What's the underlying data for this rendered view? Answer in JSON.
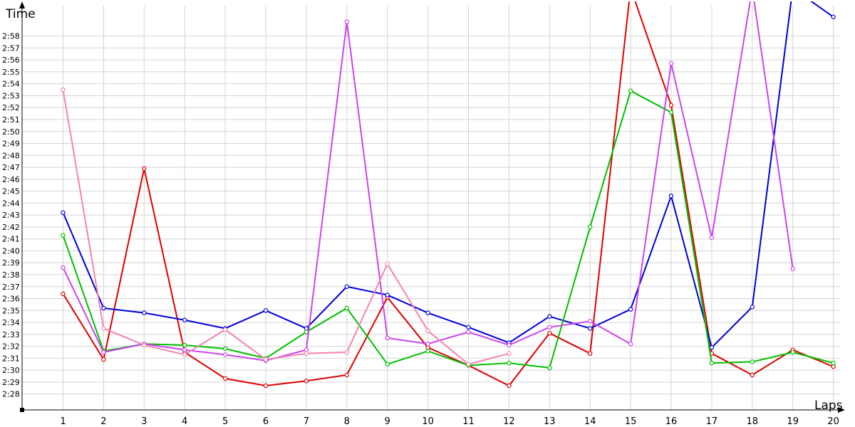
{
  "chart_data": {
    "type": "line",
    "ylabel": "Time",
    "xlabel": "Laps",
    "x": [
      1,
      2,
      3,
      4,
      5,
      6,
      7,
      8,
      9,
      10,
      11,
      12,
      13,
      14,
      15,
      16,
      17,
      18,
      19,
      20
    ],
    "y_unit": "minutes:seconds",
    "ylim": [
      "2:26.5",
      "3:00"
    ],
    "ytick_labels": [
      "2:28",
      "2:29",
      "2:30",
      "2:31",
      "2:32",
      "2:33",
      "2:34",
      "2:35",
      "2:36",
      "2:37",
      "2:38",
      "2:39",
      "2:40",
      "2:41",
      "2:42",
      "2:43",
      "2:44",
      "2:45",
      "2:46",
      "2:47",
      "2:48",
      "2:49",
      "2:50",
      "2:51",
      "2:52",
      "2:53",
      "2:54",
      "2:55",
      "2:56",
      "2:57",
      "2:58"
    ],
    "grid": true,
    "legend": "none",
    "series": [
      {
        "color": "#e00000",
        "values": [
          "2:36.4",
          "2:30.9",
          "2:46.9",
          "2:31.5",
          "2:29.3",
          "2:28.7",
          "2:29.1",
          "2:29.6",
          "2:36.1",
          "2:31.9",
          "2:30.4",
          "2:28.7",
          "2:33.1",
          "2:31.4",
          "3:02.0",
          "2:52.2",
          "2:31.4",
          "2:29.6",
          "2:31.7",
          "2:30.3"
        ]
      },
      {
        "color": "#0000d8",
        "values": [
          "2:43.2",
          "2:35.2",
          "2:34.8",
          "2:34.2",
          "2:33.5",
          "2:35.0",
          "2:33.5",
          "2:37.0",
          "2:36.3",
          "2:34.8",
          "2:33.6",
          "2:32.3",
          "2:34.5",
          "2:33.5",
          "2:35.1",
          "2:44.6",
          "2:31.9",
          "2:35.3",
          "3:02.0",
          "2:59.6"
        ]
      },
      {
        "color": "#00c000",
        "values": [
          "2:41.3",
          "2:31.6",
          "2:32.2",
          "2:32.1",
          "2:31.8",
          "2:31.0",
          "2:33.2",
          "2:35.2",
          "2:30.5",
          "2:31.6",
          "2:30.4",
          "2:30.6",
          "2:30.2",
          "2:42.0",
          "2:53.4",
          "2:51.6",
          "2:30.6",
          "2:30.7",
          "2:31.5",
          "2:30.6"
        ]
      },
      {
        "color": "#cc44ee",
        "values": [
          "2:38.6",
          "2:31.5",
          "2:32.2",
          "2:31.7",
          "2:31.3",
          "2:30.8",
          "2:31.7",
          "2:59.2",
          "2:32.7",
          "2:32.2",
          "2:33.2",
          "2:32.1",
          "2:33.6",
          "2:34.1",
          "2:32.2",
          "2:55.7",
          "2:41.1",
          "3:02.0",
          "2:38.5",
          null
        ]
      },
      {
        "color": "#f584b0",
        "values": [
          "2:53.5",
          "2:33.5",
          "2:32.1",
          "2:31.3",
          "2:33.4",
          "2:30.9",
          "2:31.4",
          "2:31.5",
          "2:38.9",
          "2:33.3",
          "2:30.5",
          "2:31.4",
          null,
          null,
          null,
          null,
          null,
          null,
          null,
          null
        ]
      }
    ]
  }
}
